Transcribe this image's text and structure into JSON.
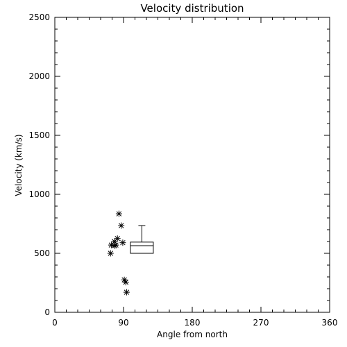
{
  "chart_data": {
    "type": "scatter",
    "title": "Velocity distribution",
    "xlabel": "Angle from north",
    "ylabel": "Velocity (km/s)",
    "xlim": [
      0,
      360
    ],
    "ylim": [
      0,
      2500
    ],
    "xticks": [
      0,
      90,
      180,
      270,
      360
    ],
    "yticks": [
      0,
      500,
      1000,
      1500,
      2000,
      2500
    ],
    "xtick_labels": [
      "0",
      "90",
      "180",
      "270",
      "360"
    ],
    "ytick_labels": [
      "0",
      "500",
      "1000",
      "1500",
      "2000",
      "2500"
    ],
    "grid": false,
    "points": [
      {
        "x": 84,
        "y": 835
      },
      {
        "x": 87,
        "y": 735
      },
      {
        "x": 82,
        "y": 625
      },
      {
        "x": 78,
        "y": 600
      },
      {
        "x": 89,
        "y": 590
      },
      {
        "x": 74,
        "y": 570
      },
      {
        "x": 80,
        "y": 570
      },
      {
        "x": 78,
        "y": 565
      },
      {
        "x": 73,
        "y": 500
      },
      {
        "x": 91,
        "y": 275
      },
      {
        "x": 93,
        "y": 255
      },
      {
        "x": 94,
        "y": 170
      }
    ],
    "boxplot": {
      "x_center": 114,
      "x_halfwidth": 15,
      "min": 500,
      "q1": 500,
      "median": 565,
      "q3": 595,
      "max": 735
    }
  }
}
